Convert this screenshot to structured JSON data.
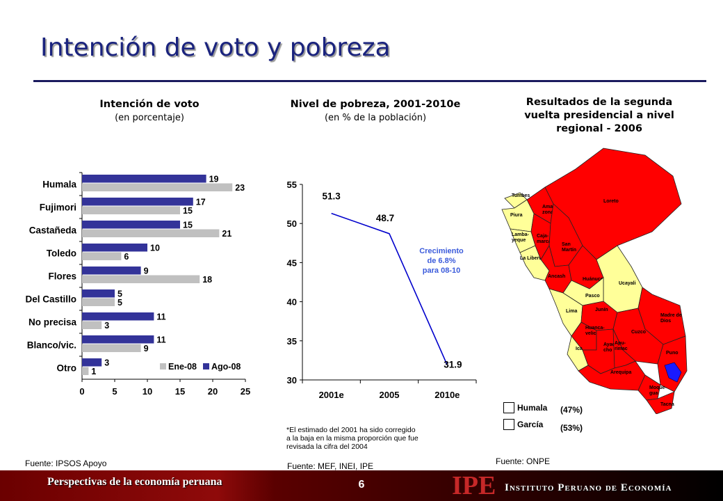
{
  "title": "Intención de voto y pobreza",
  "panel1": {
    "heading": "Intención de voto",
    "subheading": "(en porcentaje)",
    "source": "Fuente: IPSOS Apoyo"
  },
  "panel2": {
    "heading": "Nivel de pobreza, 2001-2010e",
    "subheading": "(en % de la población)",
    "annotation": [
      "Crecimiento",
      "de 6.8%",
      "para 08-10"
    ],
    "note": [
      "*El estimado del 2001 ha sido corregido",
      "a la baja en la misma proporción que fue",
      "revisada la cifra del 2004"
    ],
    "source": "Fuente: MEF, INEI, IPE"
  },
  "panel3": {
    "heading": [
      "Resultados de la segunda",
      "vuelta presidencial  a nivel",
      "regional - 2006"
    ],
    "legend": [
      {
        "name": "Humala",
        "pct": "(47%)",
        "color": "#ff0000"
      },
      {
        "name": "García",
        "pct": "(53%)",
        "color": "#ffff99"
      }
    ],
    "regions": [
      {
        "name": "Tumbes",
        "winner": "García"
      },
      {
        "name": "Piura",
        "winner": "García"
      },
      {
        "name": "Lamba-\nyeque",
        "winner": "García"
      },
      {
        "name": "La Libertad",
        "winner": "García"
      },
      {
        "name": "Ama-\nzonas",
        "winner": "Humala"
      },
      {
        "name": "Caja-\nmarca",
        "winner": "Humala"
      },
      {
        "name": "Loreto",
        "winner": "Humala"
      },
      {
        "name": "San\nMartín",
        "winner": "Humala"
      },
      {
        "name": "Ancash",
        "winner": "Humala"
      },
      {
        "name": "Huánuco",
        "winner": "Humala"
      },
      {
        "name": "Ucayali",
        "winner": "García"
      },
      {
        "name": "Pasco",
        "winner": "García"
      },
      {
        "name": "Lima",
        "winner": "García"
      },
      {
        "name": "Junín",
        "winner": "Humala"
      },
      {
        "name": "Madre de\nDios",
        "winner": "Humala"
      },
      {
        "name": "Huanca-\nvelica",
        "winner": "Humala"
      },
      {
        "name": "Cuzco",
        "winner": "Humala"
      },
      {
        "name": "Ica",
        "winner": "García"
      },
      {
        "name": "Ayacu-\ncho",
        "winner": "Humala"
      },
      {
        "name": "Apu-\nrimac",
        "winner": "Humala"
      },
      {
        "name": "Puno",
        "winner": "Humala"
      },
      {
        "name": "Arequipa",
        "winner": "Humala"
      },
      {
        "name": "Moque-\ngua",
        "winner": "Humala"
      },
      {
        "name": "Tacna",
        "winner": "Humala"
      }
    ],
    "source": "Fuente: ONPE"
  },
  "footer": {
    "left": "Perspectivas de la economía peruana",
    "page": "6",
    "logo": "IPE",
    "institute": "Instituto Peruano de Economía"
  },
  "chart_data": [
    {
      "type": "bar",
      "orientation": "horizontal",
      "categories": [
        "Humala",
        "Fujimori",
        "Castañeda",
        "Toledo",
        "Flores",
        "Del Castillo",
        "No precisa",
        "Blanco/vic.",
        "Otro"
      ],
      "series": [
        {
          "name": "Ago-08",
          "color": "#333399",
          "values": [
            19,
            17,
            15,
            10,
            9,
            5,
            11,
            11,
            3
          ]
        },
        {
          "name": "Ene-08",
          "color": "#c0c0c0",
          "values": [
            23,
            15,
            21,
            6,
            18,
            5,
            3,
            9,
            1
          ]
        }
      ],
      "xlim": [
        0,
        25
      ],
      "xticks": [
        0,
        5,
        10,
        15,
        20,
        25
      ],
      "legend": "bottom-right"
    },
    {
      "type": "line",
      "x": [
        "2001e",
        "2005",
        "2010e"
      ],
      "series": [
        {
          "color": "#0000cc",
          "values": [
            51.3,
            48.7,
            31.9
          ]
        }
      ],
      "ylim": [
        30,
        55
      ],
      "yticks": [
        30,
        35,
        40,
        45,
        50,
        55
      ]
    }
  ]
}
